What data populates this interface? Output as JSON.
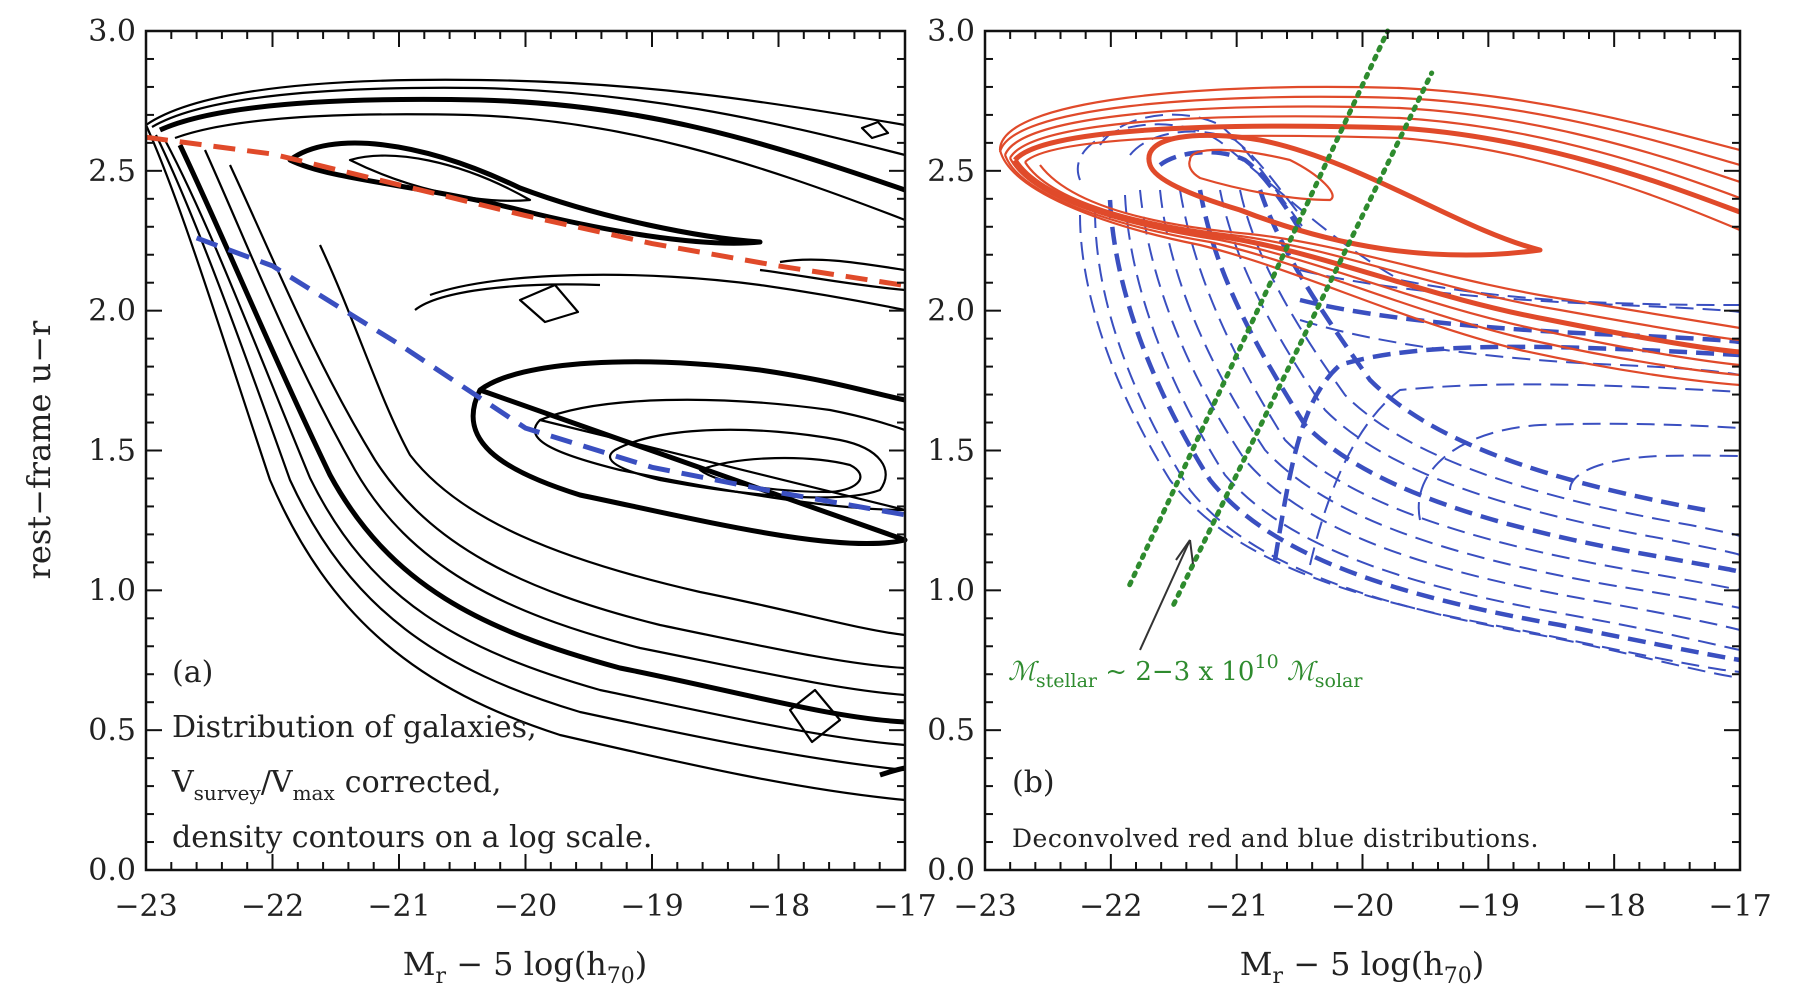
{
  "chart_data": [
    {
      "id": "a",
      "type": "contour",
      "panel_label": "(a)",
      "annotation_lines": [
        "Distribution of galaxies,",
        "corrected,",
        "density contours on a log scale."
      ],
      "annotation_math": {
        "base1": "V",
        "sub1": "survey",
        "sep": "/",
        "base2": "V",
        "sub2": "max"
      },
      "xlabel": {
        "base": "M",
        "sub1": "r",
        "mid": " − 5 log(h",
        "sub2": "70",
        "end": ")"
      },
      "ylabel": "rest−frame u−r",
      "xlim": [
        -23,
        -17
      ],
      "ylim": [
        0.0,
        3.0
      ],
      "x_ticks": [
        "−23",
        "−22",
        "−21",
        "−20",
        "−19",
        "−18",
        "−17"
      ],
      "y_ticks": [
        "0.0",
        "0.5",
        "1.0",
        "1.5",
        "2.0",
        "2.5",
        "3.0"
      ],
      "fits": [
        {
          "color": "#e04a2a",
          "x": [
            -23.0,
            -22.0,
            -21.0,
            -20.0,
            -19.0,
            -18.0,
            -17.0
          ],
          "y": [
            2.62,
            2.56,
            2.45,
            2.34,
            2.24,
            2.16,
            2.09
          ]
        },
        {
          "color": "#3a4fc0",
          "x": [
            -22.6,
            -22.0,
            -21.0,
            -20.0,
            -19.0,
            -18.0,
            -17.0
          ],
          "y": [
            2.26,
            2.16,
            1.88,
            1.58,
            1.44,
            1.35,
            1.27
          ]
        }
      ]
    },
    {
      "id": "b",
      "type": "contour",
      "panel_label": "(b)",
      "annotation_lines": [
        "Deconvolved red and blue distributions."
      ],
      "mass_annotation": {
        "base1": "ℳ",
        "sub1": "stellar",
        "mid": " ~ 2−3 x 10",
        "sup": "10",
        "base2": " ℳ",
        "sub2": "solar"
      },
      "xlabel": {
        "base": "M",
        "sub1": "r",
        "mid": " − 5 log(h",
        "sub2": "70",
        "end": ")"
      },
      "xlim": [
        -23,
        -17
      ],
      "ylim": [
        0.0,
        3.0
      ],
      "x_ticks": [
        "−23",
        "−22",
        "−21",
        "−20",
        "−19",
        "−18",
        "−17"
      ],
      "y_ticks": [
        "0.0",
        "0.5",
        "1.0",
        "1.5",
        "2.0",
        "2.5",
        "3.0"
      ],
      "mass_lines": [
        {
          "x": [
            -21.85,
            -19.8
          ],
          "y": [
            1.02,
            3.0
          ]
        },
        {
          "x": [
            -21.5,
            -19.45
          ],
          "y": [
            0.95,
            2.85
          ]
        }
      ],
      "red_color": "#e04a2a",
      "blue_color": "#3a4fc0",
      "mass_color": "#2e8b2e"
    }
  ]
}
